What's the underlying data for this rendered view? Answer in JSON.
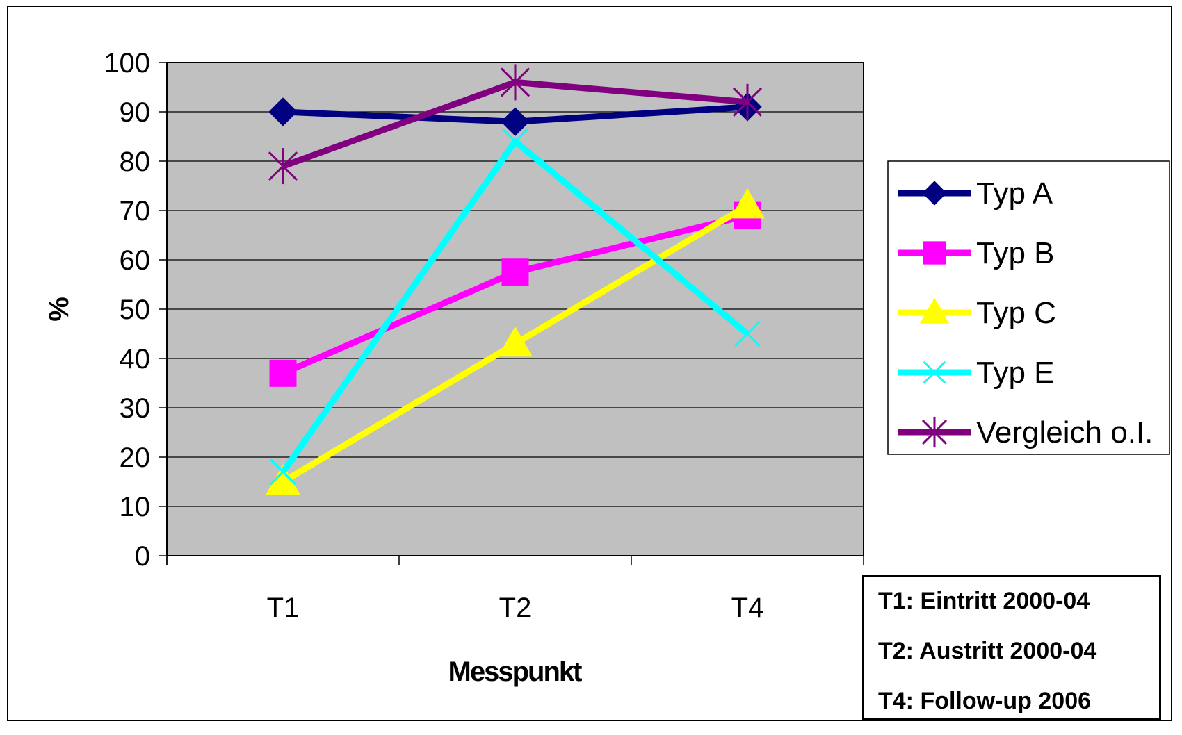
{
  "chart_data": {
    "type": "line",
    "categories": [
      "T1",
      "T2",
      "T4"
    ],
    "ylabel": "%",
    "xlabel": "Messpunkt",
    "ylim": [
      0,
      100
    ],
    "yticks": [
      0,
      10,
      20,
      30,
      40,
      50,
      60,
      70,
      80,
      90,
      100
    ],
    "grid": true,
    "legend_position": "right",
    "plot_background": "#c0c0c0",
    "series": [
      {
        "name": "Typ A",
        "values": [
          90,
          88,
          91
        ],
        "color": "#000080",
        "marker": "diamond"
      },
      {
        "name": "Typ B",
        "values": [
          37,
          57.5,
          69
        ],
        "color": "#ff00ff",
        "marker": "square"
      },
      {
        "name": "Typ C",
        "values": [
          15,
          43,
          71
        ],
        "color": "#ffff00",
        "marker": "triangle"
      },
      {
        "name": "Typ E",
        "values": [
          17,
          84,
          45
        ],
        "color": "#00ffff",
        "marker": "x"
      },
      {
        "name": "Vergleich o.I.",
        "values": [
          79,
          96,
          92
        ],
        "color": "#800080",
        "marker": "star"
      }
    ],
    "notes": [
      "T1: Eintritt 2000-04",
      "T2: Austritt 2000-04",
      "T4: Follow-up 2006"
    ]
  }
}
